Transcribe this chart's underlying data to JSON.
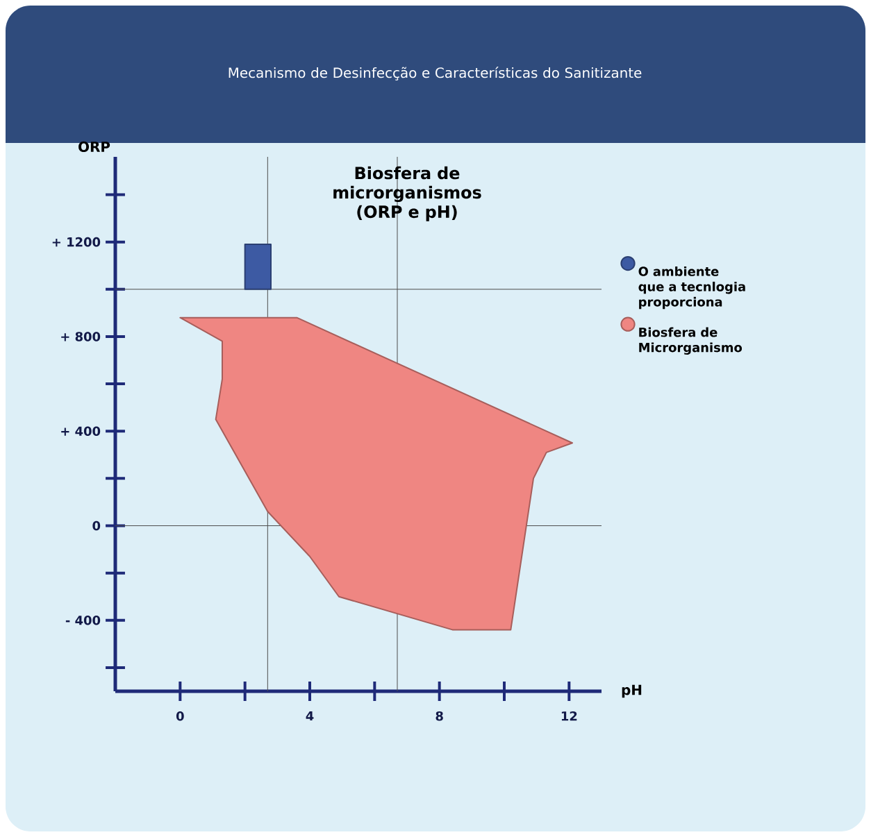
{
  "chart_data": {
    "type": "area",
    "title": "Mecanismo de Desinfecção e Características do Sanitizante",
    "subtitle": "Biosfera de microrganismos (ORP e pH)",
    "xlabel": "pH",
    "ylabel": "ORP",
    "series": [
      {
        "name": "O ambiente que a tecnlogia proporciona",
        "color": "#3d5aa3",
        "x": [
          2.0,
          2.8,
          2.8,
          2.0
        ],
        "values": [
          1000,
          1000,
          1190,
          1190
        ]
      },
      {
        "name": "Biosfera de Microrganismo",
        "color": "#ef8682",
        "x": [
          0,
          3.6,
          12.1,
          11.3,
          10.9,
          10.2,
          8.4,
          4.9,
          4.0,
          2.7,
          1.1,
          1.3,
          1.3
        ],
        "values": [
          880,
          880,
          350,
          310,
          200,
          -440,
          -440,
          -300,
          -130,
          60,
          450,
          620,
          780
        ]
      }
    ],
    "xlim": [
      -2,
      13
    ],
    "ylim": [
      -700,
      1560
    ],
    "xticks": [
      0,
      {
        "value": 2,
        "label": null
      },
      4,
      {
        "value": 6,
        "label": null
      },
      8,
      {
        "value": 10,
        "label": null
      },
      12
    ],
    "yticks": [
      {
        "value": -600,
        "label": null
      },
      {
        "value": -400,
        "label": "- 400"
      },
      {
        "value": -200,
        "label": null
      },
      0,
      {
        "value": 200,
        "label": null
      },
      {
        "value": 400,
        "label": "+ 400"
      },
      {
        "value": 600,
        "label": null
      },
      {
        "value": 800,
        "label": "+ 800"
      },
      {
        "value": 1000,
        "label": null
      },
      {
        "value": 1200,
        "label": "+ 1200"
      },
      {
        "value": 1400,
        "label": null
      }
    ],
    "ref_lines": [
      {
        "axis": "x",
        "value": 2.7
      },
      {
        "axis": "x",
        "value": 6.7
      },
      {
        "axis": "y",
        "value": 0
      },
      {
        "axis": "y",
        "value": 1000
      }
    ],
    "legend": "right"
  }
}
